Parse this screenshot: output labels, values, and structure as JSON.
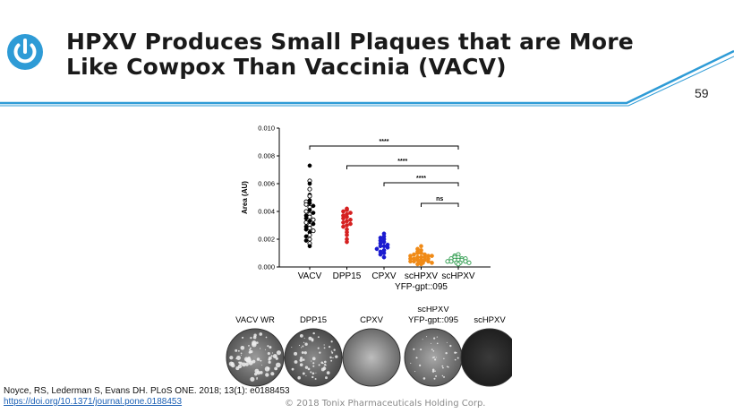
{
  "slide": {
    "title_line1": "HPXV Produces Small Plaques that are More",
    "title_line2": "Like Cowpox Than Vaccinia (VACV)",
    "page_number": "59",
    "logo_icon": "power-button-icon",
    "accent_color": "#2e9bd6"
  },
  "chart_data": {
    "type": "scatter",
    "ylabel": "Area (AU)",
    "ylim": [
      0,
      0.01
    ],
    "yticks": [
      "0.000",
      "0.002",
      "0.004",
      "0.006",
      "0.008",
      "0.010"
    ],
    "categories": [
      "VACV",
      "DPP15",
      "CPXV",
      "scHPXV",
      "scHPXV"
    ],
    "category_sublabels": [
      "",
      "",
      "",
      "YFP-gpt::095",
      ""
    ],
    "grid": false,
    "series": [
      {
        "color": "#000000",
        "values": [
          0.0073,
          0.0062,
          0.006,
          0.0056,
          0.0052,
          0.0051,
          0.0048,
          0.0047,
          0.0046,
          0.0045,
          0.0044,
          0.0043,
          0.0041,
          0.004,
          0.0039,
          0.0038,
          0.0037,
          0.0036,
          0.0035,
          0.0034,
          0.0033,
          0.0032,
          0.0031,
          0.003,
          0.0029,
          0.0028,
          0.0027,
          0.0026,
          0.0025,
          0.0023,
          0.0022,
          0.002,
          0.0019,
          0.0017,
          0.0015
        ]
      },
      {
        "color": "#d62020",
        "values": [
          0.0042,
          0.0041,
          0.004,
          0.0039,
          0.0038,
          0.0037,
          0.0036,
          0.0035,
          0.0034,
          0.0033,
          0.0032,
          0.0031,
          0.003,
          0.0029,
          0.0027,
          0.0025,
          0.0023,
          0.002,
          0.0018
        ]
      },
      {
        "color": "#1a1ad0",
        "values": [
          0.0024,
          0.0022,
          0.0021,
          0.002,
          0.0019,
          0.0018,
          0.0017,
          0.0016,
          0.0015,
          0.0015,
          0.0014,
          0.0013,
          0.0012,
          0.0011,
          0.001,
          0.0009,
          0.0007
        ]
      },
      {
        "color": "#f08a16",
        "values": [
          0.0015,
          0.0013,
          0.0012,
          0.0011,
          0.001,
          0.001,
          0.0009,
          0.0009,
          0.0008,
          0.0008,
          0.0008,
          0.0007,
          0.0007,
          0.0007,
          0.0006,
          0.0006,
          0.0006,
          0.0005,
          0.0005,
          0.0005,
          0.0004,
          0.0004,
          0.0004,
          0.0003,
          0.0003,
          0.0003,
          0.0002,
          0.0002
        ]
      },
      {
        "color": "#2a9a4a",
        "values": [
          0.0009,
          0.0008,
          0.0007,
          0.0007,
          0.0006,
          0.0006,
          0.0006,
          0.0005,
          0.0005,
          0.0005,
          0.0004,
          0.0004,
          0.0004,
          0.0003,
          0.0003,
          0.0003,
          0.0002
        ]
      }
    ],
    "annotations": [
      {
        "from": 0,
        "to": 4,
        "label": "****"
      },
      {
        "from": 1,
        "to": 4,
        "label": "****"
      },
      {
        "from": 2,
        "to": 4,
        "label": "****"
      },
      {
        "from": 3,
        "to": 4,
        "label": "ns"
      }
    ]
  },
  "plaques": {
    "labels": [
      "VACV WR",
      "DPP15",
      "CPXV",
      "scHPXV",
      "scHPXV"
    ],
    "sublabels": [
      "",
      "",
      "",
      "YFP-gpt::095",
      ""
    ]
  },
  "citation": {
    "text": "Noyce, RS, Lederman S, Evans DH. PLoS ONE. 2018; 13(1): e0188453",
    "link": "https://doi.org/10.1371/journal.pone.0188453"
  },
  "copyright": "© 2018 Tonix Pharmaceuticals Holding Corp."
}
